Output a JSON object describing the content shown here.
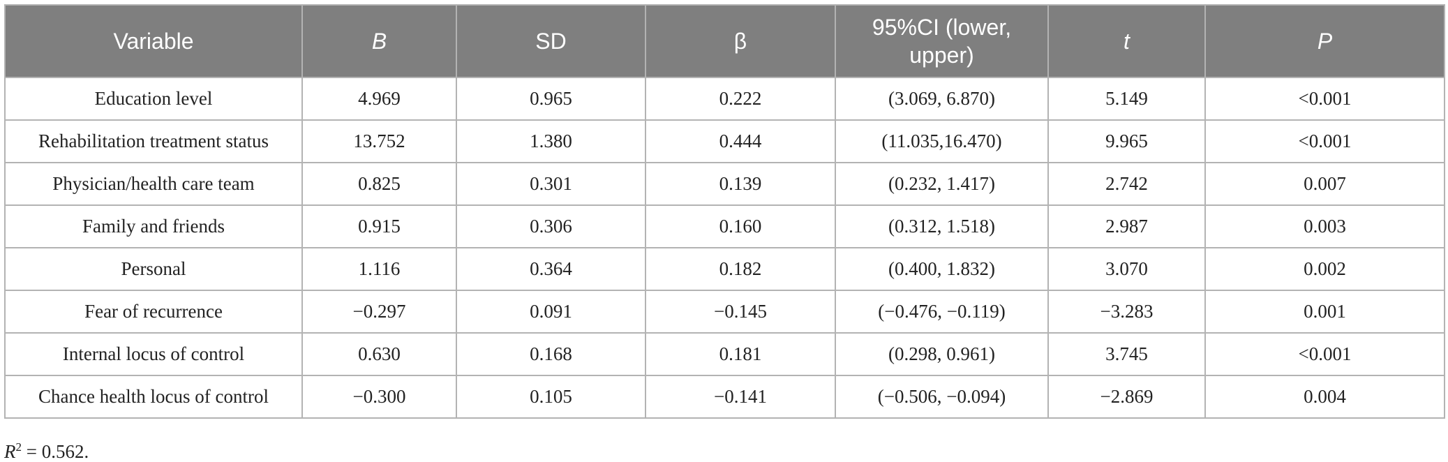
{
  "table": {
    "headers": [
      {
        "label": "Variable",
        "italic": false
      },
      {
        "label": "B",
        "italic": true
      },
      {
        "label": "SD",
        "italic": false
      },
      {
        "label": "β",
        "italic": false
      },
      {
        "label": "95%CI (lower, upper)",
        "italic": false
      },
      {
        "label": "t",
        "italic": true
      },
      {
        "label": "P",
        "italic": true
      }
    ],
    "rows": [
      [
        "Education level",
        "4.969",
        "0.965",
        "0.222",
        "(3.069, 6.870)",
        "5.149",
        "<0.001"
      ],
      [
        "Rehabilitation treatment status",
        "13.752",
        "1.380",
        "0.444",
        "(11.035,16.470)",
        "9.965",
        "<0.001"
      ],
      [
        "Physician/health care team",
        "0.825",
        "0.301",
        "0.139",
        "(0.232, 1.417)",
        "2.742",
        "0.007"
      ],
      [
        "Family and friends",
        "0.915",
        "0.306",
        "0.160",
        "(0.312, 1.518)",
        "2.987",
        "0.003"
      ],
      [
        "Personal",
        "1.116",
        "0.364",
        "0.182",
        "(0.400, 1.832)",
        "3.070",
        "0.002"
      ],
      [
        "Fear of recurrence",
        "−0.297",
        "0.091",
        "−0.145",
        "(−0.476, −0.119)",
        "−3.283",
        "0.001"
      ],
      [
        "Internal locus of control",
        "0.630",
        "0.168",
        "0.181",
        "(0.298, 0.961)",
        "3.745",
        "<0.001"
      ],
      [
        "Chance health locus of control",
        "−0.300",
        "0.105",
        "−0.141",
        "(−0.506, −0.094)",
        "−2.869",
        "0.004"
      ]
    ]
  },
  "footnote": {
    "symbol": "R",
    "superscript": "2",
    "value_text": " = 0.562."
  },
  "colors": {
    "header_background": "#7f7f7f",
    "header_text": "#ffffff",
    "grid_lines": "#b3b3b3",
    "body_text": "#222222"
  }
}
